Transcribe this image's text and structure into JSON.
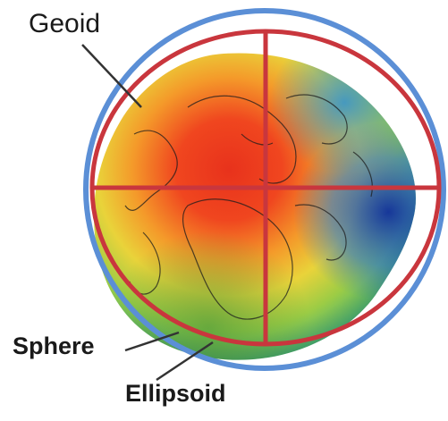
{
  "labels": {
    "geoid": "Geoid",
    "sphere": "Sphere",
    "ellipsoid": "Ellipsoid"
  },
  "colors": {
    "sphere_outline": "#5b8fd6",
    "ellipsoid_outline": "#c9363d",
    "crosshair": "#c9363d",
    "leader_line": "#333333"
  }
}
